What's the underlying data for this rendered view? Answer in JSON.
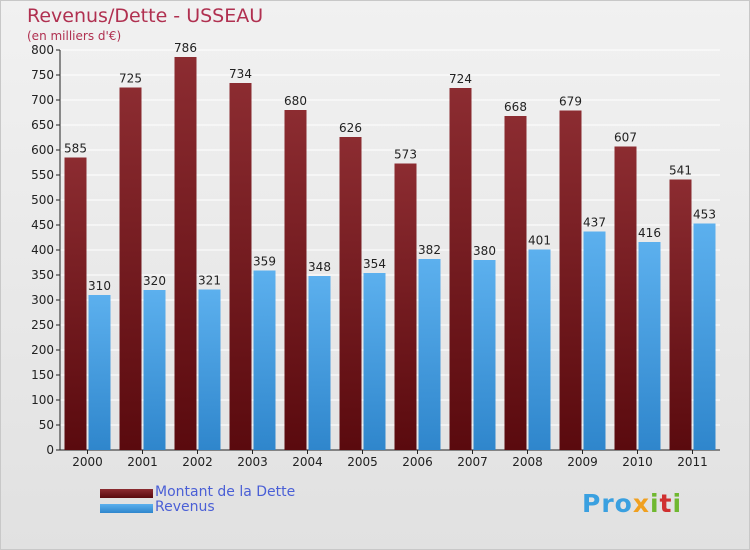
{
  "title": "Revenus/Dette - USSEAU",
  "subtitle": "(en milliers d'€)",
  "logo": {
    "text": "Proxiti",
    "parts": [
      "Pro",
      "x",
      "i",
      "t",
      "i"
    ]
  },
  "colors": {
    "debt": "#7a1f24",
    "revenue": "#4aa3e6",
    "title": "#b03050",
    "legend_text": "#4a5fd6"
  },
  "chart_data": {
    "type": "bar",
    "categories": [
      "2000",
      "2001",
      "2002",
      "2003",
      "2004",
      "2005",
      "2006",
      "2007",
      "2008",
      "2009",
      "2010",
      "2011"
    ],
    "series": [
      {
        "name": "Montant de la Dette",
        "values": [
          585,
          725,
          786,
          734,
          680,
          626,
          573,
          724,
          668,
          679,
          607,
          541
        ]
      },
      {
        "name": "Revenus",
        "values": [
          310,
          320,
          321,
          359,
          348,
          354,
          382,
          380,
          401,
          437,
          416,
          453
        ]
      }
    ],
    "yticks": [
      0,
      50,
      100,
      150,
      200,
      250,
      300,
      350,
      400,
      450,
      500,
      550,
      600,
      650,
      700,
      750,
      800
    ],
    "ylim": [
      0,
      800
    ],
    "grid": true,
    "legend": "bottom-left"
  }
}
